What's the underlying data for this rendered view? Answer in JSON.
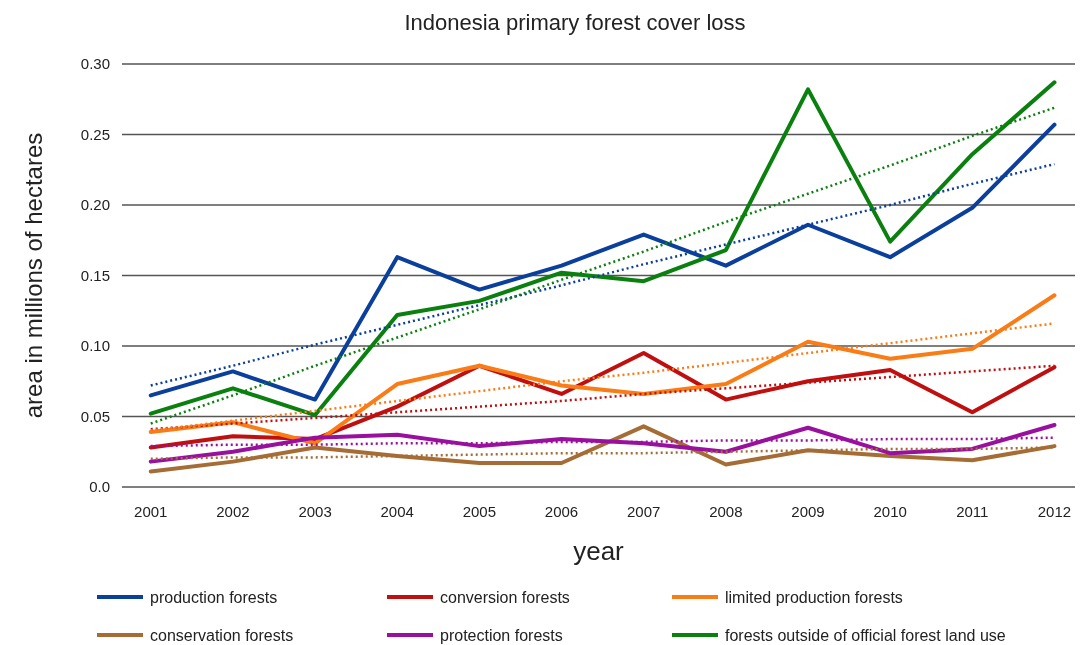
{
  "chart_data": {
    "type": "line",
    "title": "Indonesia primary forest cover loss",
    "xlabel": "year",
    "ylabel": "area in millions of hectares",
    "x": [
      2001,
      2002,
      2003,
      2004,
      2005,
      2006,
      2007,
      2008,
      2009,
      2010,
      2011,
      2012
    ],
    "xlim": [
      2000.65,
      2012.25
    ],
    "xticks": [
      2001,
      2002,
      2003,
      2004,
      2005,
      2006,
      2007,
      2008,
      2009,
      2010,
      2011,
      2012
    ],
    "ylim": [
      0,
      0.3
    ],
    "yticks": [
      {
        "value": 0,
        "label": "0.0"
      },
      0.05,
      {
        "value": 0.1,
        "label": "0.10"
      },
      0.15,
      {
        "value": 0.2,
        "label": "0.20"
      },
      0.25,
      {
        "value": 0.3,
        "label": "0.30"
      }
    ],
    "grid": "y",
    "legend": "bottom",
    "marker": "none",
    "series": [
      {
        "name": "production forests",
        "color": "#0b3f9c",
        "values": [
          0.065,
          0.082,
          0.062,
          0.163,
          0.14,
          0.157,
          0.179,
          0.157,
          0.186,
          0.163,
          0.198,
          0.257
        ]
      },
      {
        "name": "conversion forests",
        "color": "#c00f0f",
        "values": [
          0.028,
          0.036,
          0.034,
          0.057,
          0.086,
          0.066,
          0.095,
          0.062,
          0.075,
          0.083,
          0.053,
          0.085
        ]
      },
      {
        "name": "limited production forests",
        "color": "#f97c17",
        "values": [
          0.039,
          0.046,
          0.031,
          0.073,
          0.086,
          0.072,
          0.066,
          0.073,
          0.103,
          0.091,
          0.098,
          0.136
        ]
      },
      {
        "name": "conservation forests",
        "color": "#a66c35",
        "values": [
          0.011,
          0.018,
          0.028,
          0.022,
          0.017,
          0.017,
          0.043,
          0.016,
          0.026,
          0.022,
          0.019,
          0.029
        ]
      },
      {
        "name": "protection forests",
        "color": "#9a109e",
        "values": [
          0.018,
          0.025,
          0.035,
          0.037,
          0.029,
          0.034,
          0.031,
          0.025,
          0.042,
          0.024,
          0.027,
          0.044
        ]
      },
      {
        "name": "forests outside of official forest land use",
        "color": "#0a800f",
        "values": [
          0.052,
          0.07,
          0.051,
          0.122,
          0.132,
          0.152,
          0.146,
          0.168,
          0.282,
          0.174,
          0.236,
          0.287
        ]
      },
      {
        "color": "#0b3f9c",
        "line_style": "dotted",
        "values": [
          0.072,
          0.086,
          0.101,
          0.115,
          0.129,
          0.143,
          0.158,
          0.172,
          0.186,
          0.2,
          0.215,
          0.229
        ]
      },
      {
        "color": "#c00f0f",
        "line_style": "dotted",
        "values": [
          0.041,
          0.045,
          0.049,
          0.053,
          0.057,
          0.061,
          0.066,
          0.07,
          0.074,
          0.078,
          0.082,
          0.086
        ]
      },
      {
        "color": "#f97c17",
        "line_style": "dotted",
        "values": [
          0.04,
          0.047,
          0.054,
          0.061,
          0.068,
          0.075,
          0.081,
          0.088,
          0.095,
          0.102,
          0.109,
          0.116
        ]
      },
      {
        "color": "#a66c35",
        "line_style": "dotted",
        "values": [
          0.02,
          0.021,
          0.021,
          0.022,
          0.023,
          0.024,
          0.024,
          0.025,
          0.026,
          0.027,
          0.027,
          0.028
        ]
      },
      {
        "color": "#9a109e",
        "line_style": "dotted",
        "values": [
          0.029,
          0.03,
          0.03,
          0.031,
          0.031,
          0.032,
          0.032,
          0.033,
          0.033,
          0.034,
          0.034,
          0.035
        ]
      },
      {
        "color": "#0a800f",
        "line_style": "dotted",
        "values": [
          0.045,
          0.065,
          0.086,
          0.106,
          0.126,
          0.147,
          0.167,
          0.188,
          0.208,
          0.228,
          0.249,
          0.269
        ]
      }
    ]
  }
}
